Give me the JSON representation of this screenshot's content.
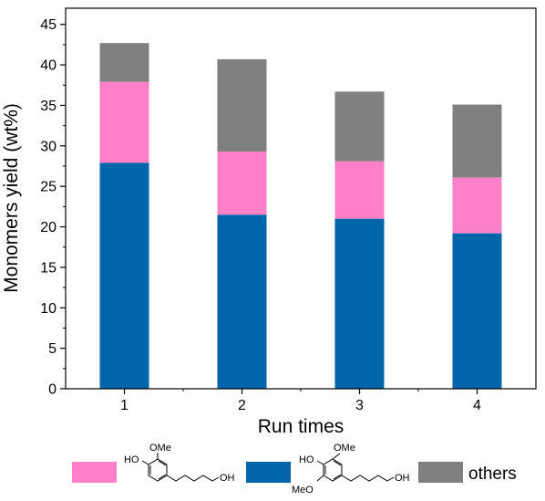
{
  "chart_data": {
    "type": "bar",
    "stacked": true,
    "categories": [
      "1",
      "2",
      "3",
      "4"
    ],
    "series": [
      {
        "legend_item": "syringyl-propanol",
        "values": [
          27.9,
          21.5,
          21.0,
          19.2
        ],
        "color": "#0066aa"
      },
      {
        "legend_item": "guaiacyl-propanol",
        "values": [
          10.0,
          7.8,
          7.1,
          6.9
        ],
        "color": "#ff80c8"
      },
      {
        "name": "others",
        "values": [
          4.8,
          11.4,
          8.6,
          9.0
        ],
        "color": "#808080"
      }
    ],
    "xlabel": "Run times",
    "ylabel": "Monomers yield (wt%)",
    "ylim": [
      0,
      47
    ],
    "yticks": [
      0,
      5,
      10,
      15,
      20,
      25,
      30,
      35,
      40,
      45
    ],
    "grid": false,
    "legend_position": "bottom"
  },
  "legend": {
    "items": [
      {
        "name": "guaiacyl",
        "color": "#ff80c8",
        "labels": {
          "oh": "HO",
          "ome": "OMe",
          "tail": "OH"
        }
      },
      {
        "name": "syringyl",
        "color": "#0066aa",
        "labels": {
          "oh": "HO",
          "ome": "OMe",
          "ome2": "MeO",
          "tail": "OH"
        }
      },
      {
        "name": "others",
        "color": "#808080",
        "label": "others"
      }
    ]
  }
}
